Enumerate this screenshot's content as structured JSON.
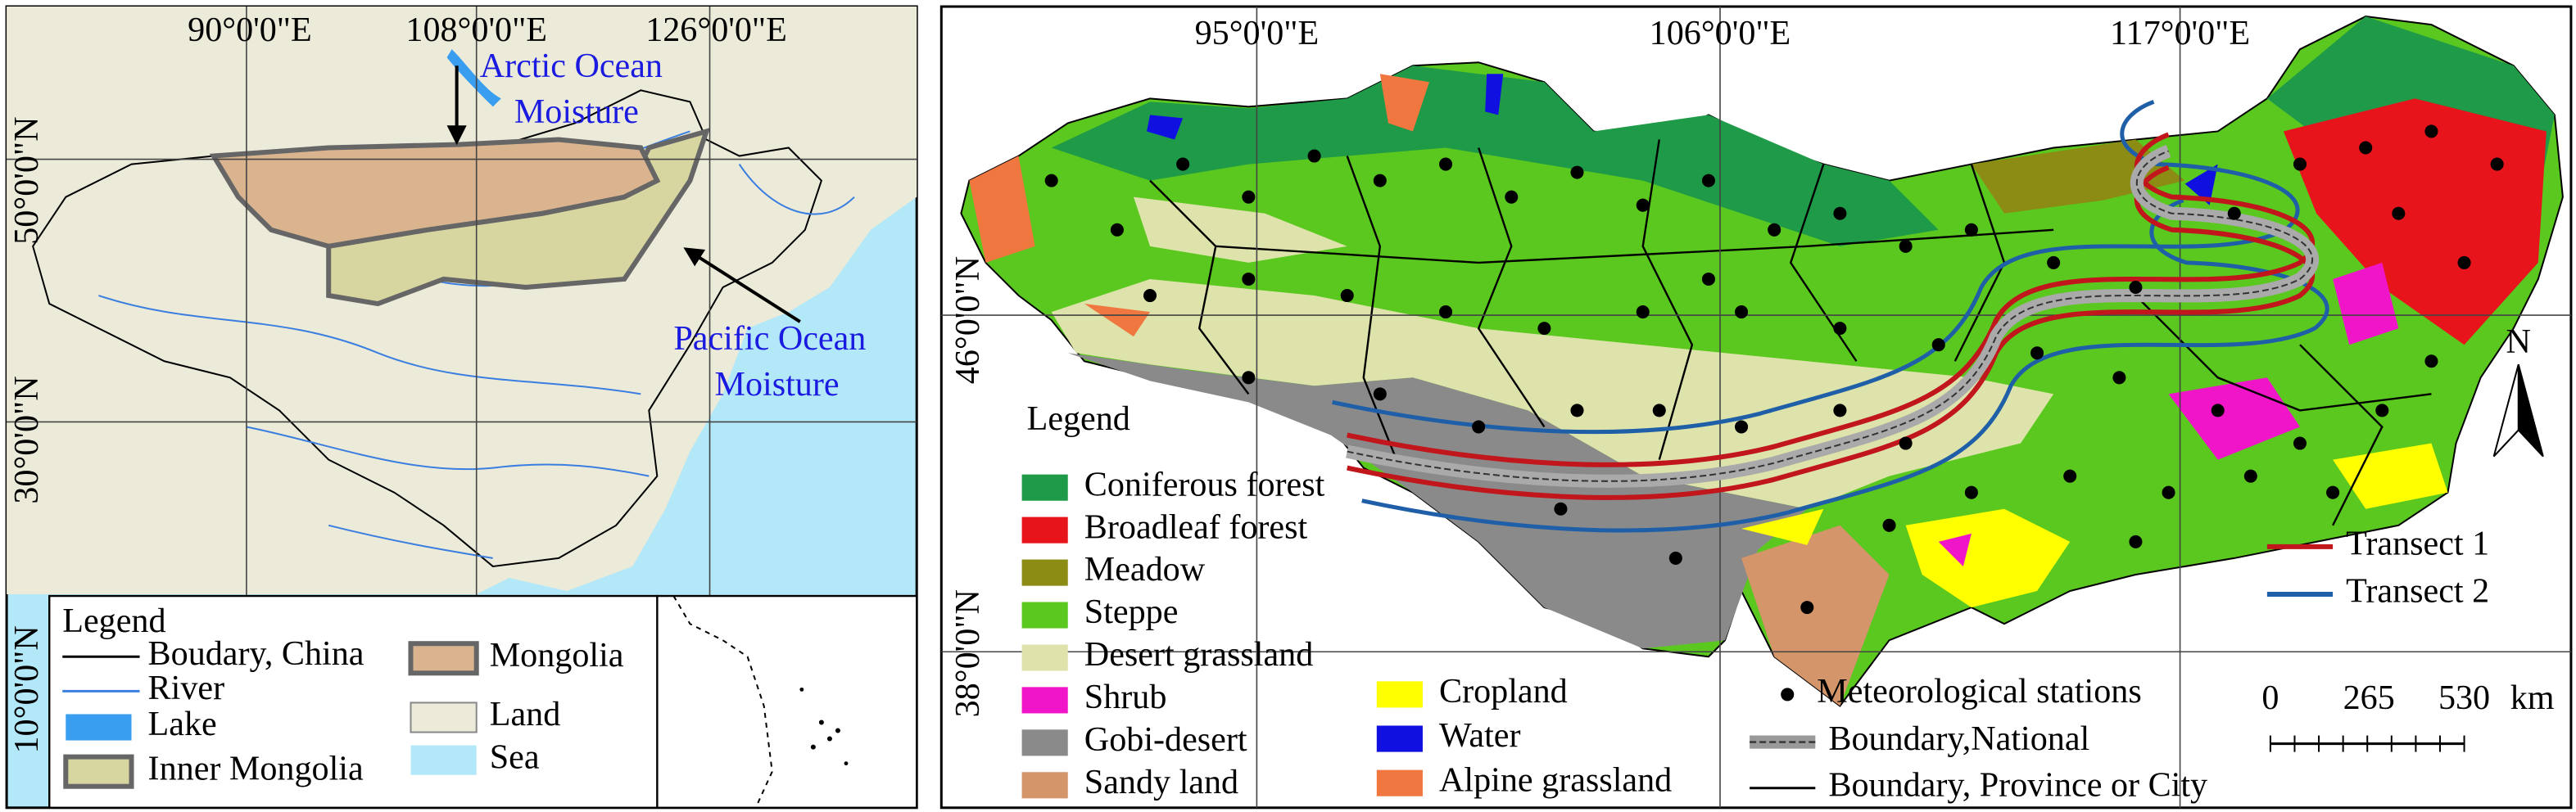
{
  "left_map": {
    "lon_labels": [
      "90°0'0\"E",
      "108°0'0\"E",
      "126°0'0\"E"
    ],
    "lat_labels": [
      "50°0'0\"N",
      "30°0'0\"N",
      "10°0'0\"N"
    ],
    "annotations": {
      "arctic": [
        "Arctic Ocean",
        "Moisture"
      ],
      "pacific": [
        "Pacific Ocean",
        "Moisture"
      ]
    },
    "legend": {
      "title": "Legend",
      "items": [
        "Boudary, China",
        "River",
        "Lake",
        "Inner Mongolia",
        "Mongolia",
        "Land",
        "Sea"
      ]
    }
  },
  "right_map": {
    "lon_labels": [
      "95°0'0\"E",
      "106°0'0\"E",
      "117°0'0\"E"
    ],
    "lat_labels": [
      "46°0'0\"N",
      "38°0'0\"N"
    ],
    "north": "N",
    "legend": {
      "title": "Legend",
      "items": [
        {
          "label": "Coniferous forest",
          "color": "#1f9a48"
        },
        {
          "label": "Broadleaf forest",
          "color": "#e8141c"
        },
        {
          "label": "Meadow",
          "color": "#8c8c14"
        },
        {
          "label": "Steppe",
          "color": "#5ac81e"
        },
        {
          "label": "Desert grassland",
          "color": "#dde3aa"
        },
        {
          "label": "Shrub",
          "color": "#f015c8"
        },
        {
          "label": "Gobi-desert",
          "color": "#8a8a8a"
        },
        {
          "label": "Sandy land",
          "color": "#d4956a"
        },
        {
          "label": "Cropland",
          "color": "#ffff00"
        },
        {
          "label": "Water",
          "color": "#1010e0"
        },
        {
          "label": "Alpine grassland",
          "color": "#f07840"
        }
      ]
    },
    "transects": [
      {
        "label": "Transect 1",
        "color": "#c0161c"
      },
      {
        "label": "Transect 2",
        "color": "#1f5fa8"
      }
    ],
    "symbols": [
      "Meteorological stations",
      "Boundary,National",
      "Boundary, Province or City"
    ],
    "scale": {
      "labels": [
        0,
        265,
        530
      ],
      "unit": "km"
    }
  }
}
